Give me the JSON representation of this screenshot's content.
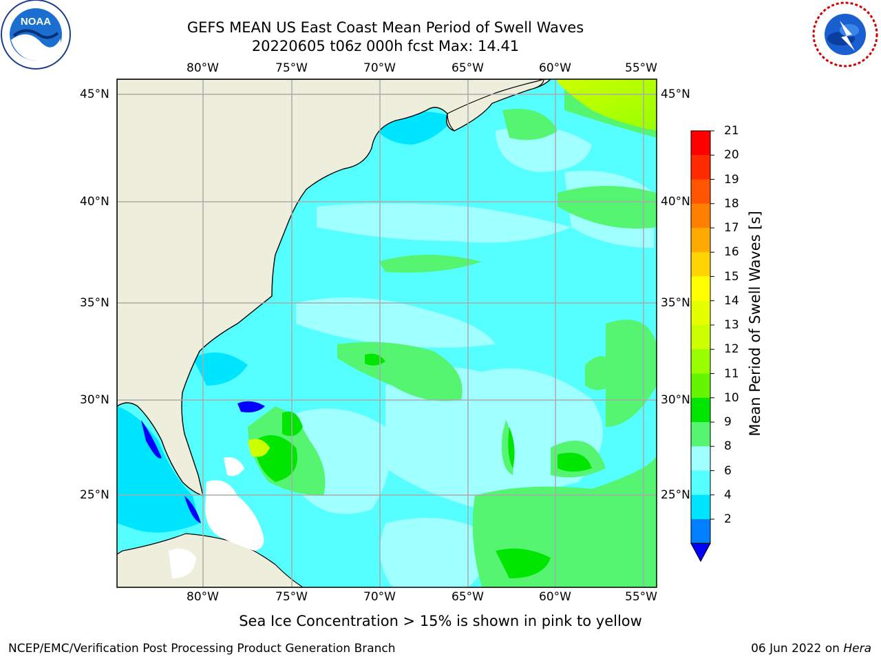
{
  "title_line1": "GEFS MEAN US East Coast Mean Period of Swell Waves",
  "title_line2": "20220605 t06z 000h fcst   Max: 14.41",
  "logos": {
    "left": "NOAA",
    "right": "NATIONAL WEATHER SERVICE"
  },
  "lon_labels": [
    "80°W",
    "75°W",
    "70°W",
    "65°W",
    "60°W",
    "55°W"
  ],
  "lat_labels": [
    "45°N",
    "40°N",
    "35°N",
    "30°N",
    "25°N"
  ],
  "colorbar": {
    "label": "Mean Period of Swell Waves [s]",
    "ticks": [
      "21",
      "20",
      "19",
      "18",
      "17",
      "16",
      "15",
      "14",
      "13",
      "12",
      "11",
      "10",
      "9",
      "8",
      "6",
      "4",
      "2"
    ],
    "colors": [
      "#ff0000",
      "#ff2a00",
      "#ff5500",
      "#ff8000",
      "#ffaa00",
      "#ffd400",
      "#ffff00",
      "#e6ff00",
      "#ccff00",
      "#99ff00",
      "#66f500",
      "#00e600",
      "#55f571",
      "#a0ffff",
      "#55ffff",
      "#00e5ff",
      "#0080ff"
    ],
    "under_color": "#0000ff"
  },
  "map_colors": {
    "land": "#eeeedd",
    "ocean_base": "#55ffff"
  },
  "sea_ice_note": "Sea Ice Concentration > 15% is shown in pink to yellow",
  "credit": "NCEP/EMC/Verification Post Processing Product Generation Branch",
  "run_date": "06 Jun 2022 on",
  "run_host": "Hera"
}
